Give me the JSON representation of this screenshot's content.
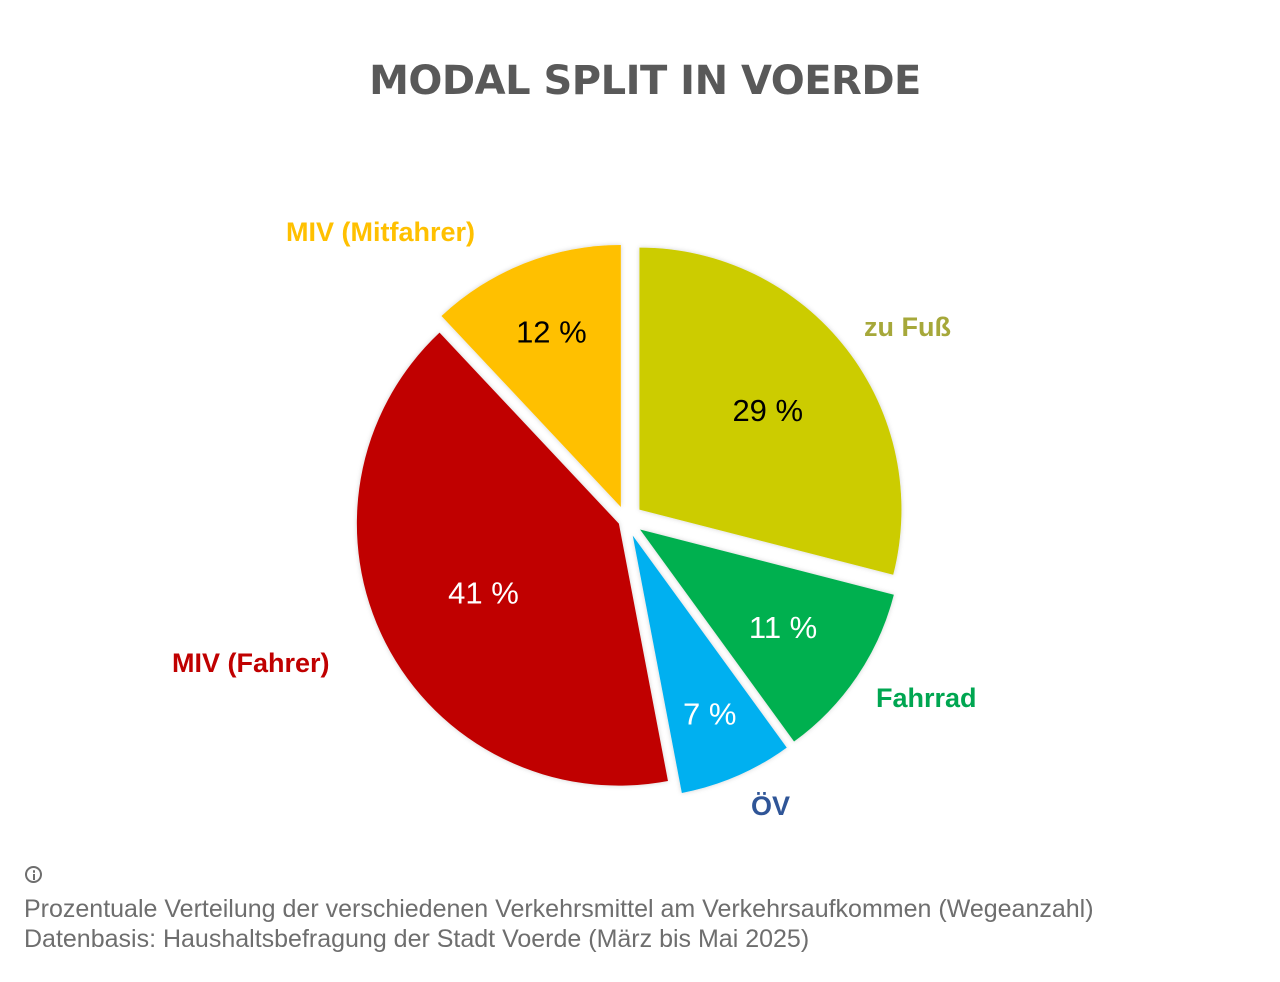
{
  "title": "MODAL SPLIT IN VOERDE",
  "footer": {
    "icon": "info-icon",
    "line1": "Prozentuale Verteilung der verschiedenen Verkehrsmittel am Verkehrsaufkommen (Wegeanzahl)",
    "line2": "Datenbasis: Haushaltsbefragung der Stadt Voerde (März bis Mai 2025)"
  },
  "labels": {
    "fuss": "zu Fuß",
    "fahrrad": "Fahrrad",
    "oev": "ÖV",
    "fahrer": "MIV (Fahrer)",
    "mitfahrer": "MIV (Mitfahrer)"
  },
  "chart_data": {
    "type": "pie",
    "title": "MODAL SPLIT IN VOERDE",
    "start_angle": "12 o'clock, clockwise",
    "exploded": true,
    "unit": "%",
    "categories": [
      "zu Fuß",
      "Fahrrad",
      "ÖV",
      "MIV (Fahrer)",
      "MIV (Mitfahrer)"
    ],
    "values": [
      29,
      11,
      7,
      41,
      12
    ],
    "data_labels": [
      "29 %",
      "11 %",
      "7 %",
      "41 %",
      "12 %"
    ],
    "colors": [
      "#CCCC00",
      "#00B050",
      "#00B0F0",
      "#C00000",
      "#FFC000"
    ],
    "label_colors": [
      "#A6A83A",
      "#00A651",
      "#2F5597",
      "#C00000",
      "#FFC000"
    ],
    "data_label_colors": [
      "#000000",
      "#FFFFFF",
      "#FFFFFF",
      "#FFFFFF",
      "#000000"
    ],
    "note": "Prozentuale Verteilung der verschiedenen Verkehrsmittel am Verkehrsaufkommen (Wegeanzahl)",
    "source": "Datenbasis: Haushaltsbefragung der Stadt Voerde (März bis Mai 2025)"
  }
}
